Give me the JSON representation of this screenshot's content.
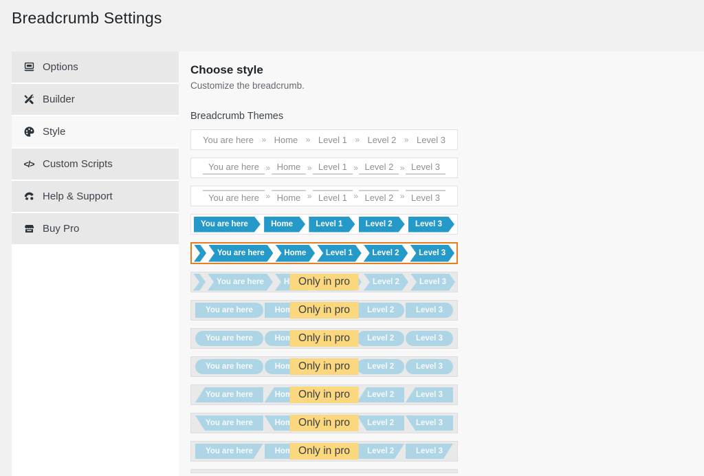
{
  "header": {
    "title": "Breadcrumb Settings"
  },
  "sidebar": {
    "items": [
      {
        "label": "Options",
        "icon": "laptop-icon",
        "active": false
      },
      {
        "label": "Builder",
        "icon": "tools-icon",
        "active": false
      },
      {
        "label": "Style",
        "icon": "palette-icon",
        "active": true
      },
      {
        "label": "Custom Scripts",
        "icon": "code-icon",
        "active": false,
        "glyph": "</>"
      },
      {
        "label": "Help & Support",
        "icon": "support-icon",
        "active": false
      },
      {
        "label": "Buy Pro",
        "icon": "store-icon",
        "active": false
      }
    ]
  },
  "main": {
    "heading": "Choose style",
    "subheading": "Customize the breadcrumb.",
    "themes_label": "Breadcrumb Themes",
    "crumbs": [
      "You are here",
      "Home",
      "Level 1",
      "Level 2",
      "Level 3"
    ],
    "separator": "»",
    "pro_badge_label": "Only in pro",
    "themes": [
      {
        "style": "text-plain",
        "pro": false,
        "selected": false
      },
      {
        "style": "text-underline",
        "pro": false,
        "selected": false
      },
      {
        "style": "text-overline",
        "pro": false,
        "selected": false
      },
      {
        "style": "arrow-chips",
        "pro": false,
        "selected": false
      },
      {
        "style": "chevron-ribbon",
        "pro": false,
        "selected": true
      },
      {
        "style": "chevron-ribbon",
        "pro": true,
        "selected": false
      },
      {
        "style": "rounded-right",
        "pro": true,
        "selected": false
      },
      {
        "style": "pill",
        "pro": true,
        "selected": false
      },
      {
        "style": "pill2",
        "pro": true,
        "selected": false
      },
      {
        "style": "slant-top-left",
        "pro": true,
        "selected": false
      },
      {
        "style": "slant-bottom-left",
        "pro": true,
        "selected": false
      },
      {
        "style": "slant-bottom-right",
        "pro": true,
        "selected": false
      },
      {
        "style": "partial",
        "pro": true,
        "selected": false,
        "partial": true
      }
    ]
  },
  "colors": {
    "blue": "#2599c7",
    "orange": "#e87d1e",
    "badge_yellow": "#fbd77d",
    "pro_blue": "#aed5e5",
    "page_bg": "#f1f1f1",
    "panel_bg": "#f8f8f8"
  }
}
